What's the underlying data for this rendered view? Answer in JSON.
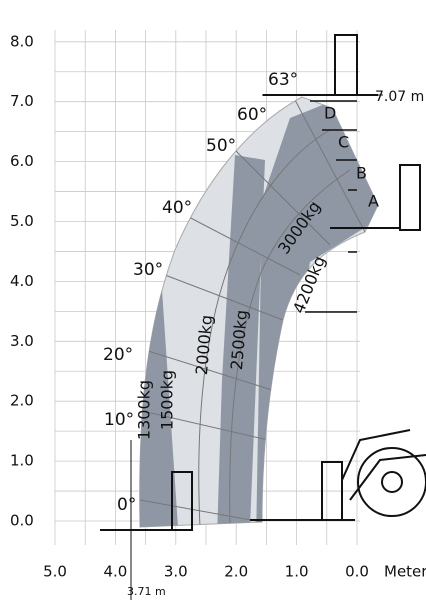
{
  "y_axis": {
    "ticks": [
      "0.0",
      "1.0",
      "2.0",
      "3.0",
      "4.0",
      "5.0",
      "6.0",
      "7.0",
      "8.0"
    ]
  },
  "x_axis": {
    "ticks": [
      "5.0",
      "4.0",
      "3.0",
      "2.0",
      "1.0",
      "0.0"
    ],
    "unit": "Meter"
  },
  "angles": [
    "0°",
    "10°",
    "20°",
    "30°",
    "40°",
    "50°",
    "60°",
    "63°"
  ],
  "positions": [
    "A",
    "B",
    "C",
    "D"
  ],
  "loads": [
    "1300kg",
    "1500kg",
    "2000kg",
    "2500kg",
    "3000kg",
    "4200kg"
  ],
  "annotations": {
    "max_height": "7.07 m",
    "reach": "3.71 m"
  }
}
